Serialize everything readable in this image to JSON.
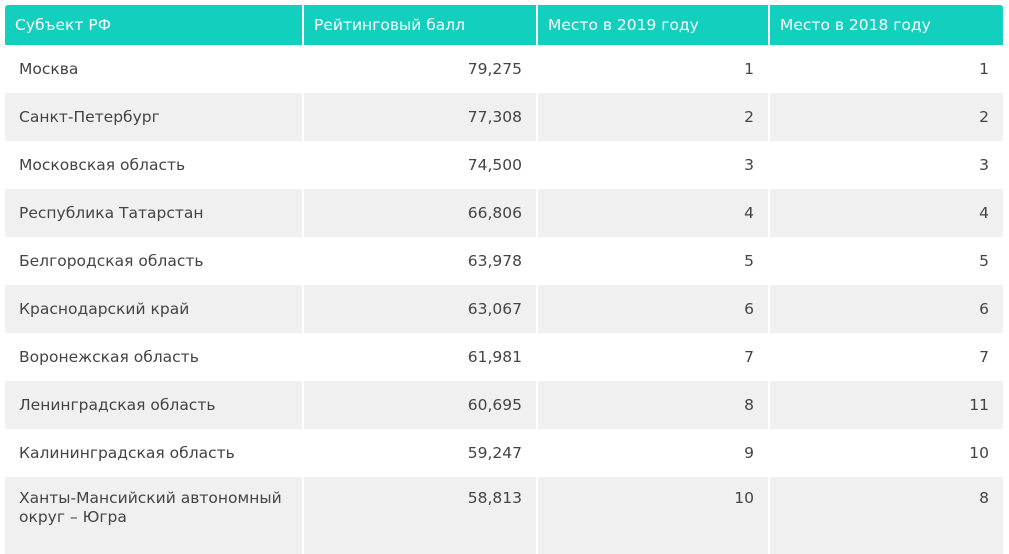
{
  "table": {
    "headers": [
      "Субъект РФ",
      "Рейтинговый балл",
      "Место в 2019 году",
      "Место в 2018 году"
    ],
    "rows": [
      {
        "subject": "Москва",
        "score": "79,275",
        "place2019": "1",
        "place2018": "1"
      },
      {
        "subject": "Санкт-Петербург",
        "score": "77,308",
        "place2019": "2",
        "place2018": "2"
      },
      {
        "subject": "Московская область",
        "score": "74,500",
        "place2019": "3",
        "place2018": "3"
      },
      {
        "subject": "Республика Татарстан",
        "score": "66,806",
        "place2019": "4",
        "place2018": "4"
      },
      {
        "subject": "Белгородская область",
        "score": "63,978",
        "place2019": "5",
        "place2018": "5"
      },
      {
        "subject": "Краснодарский край",
        "score": "63,067",
        "place2019": "6",
        "place2018": "6"
      },
      {
        "subject": "Воронежская область",
        "score": "61,981",
        "place2019": "7",
        "place2018": "7"
      },
      {
        "subject": "Ленинградская область",
        "score": "60,695",
        "place2019": "8",
        "place2018": "11"
      },
      {
        "subject": "Калининградская область",
        "score": "59,247",
        "place2019": "9",
        "place2018": "10"
      },
      {
        "subject": "Ханты-Мансийский автономный округ – Югра",
        "score": "58,813",
        "place2019": "10",
        "place2018": "8"
      }
    ]
  },
  "colors": {
    "header_bg": "#13cfbe",
    "header_text": "#ffffff",
    "row_alt_bg": "#f0f0f0",
    "cell_text": "#444444"
  }
}
